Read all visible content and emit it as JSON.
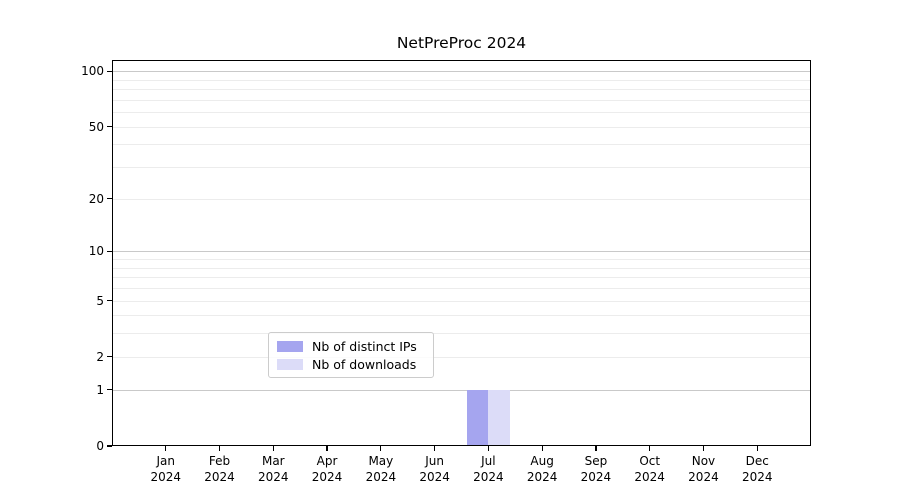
{
  "chart_data": {
    "type": "bar",
    "title": "NetPreProc 2024",
    "categories": [
      "Jan",
      "Feb",
      "Mar",
      "Apr",
      "May",
      "Jun",
      "Jul",
      "Aug",
      "Sep",
      "Oct",
      "Nov",
      "Dec"
    ],
    "category_year": "2024",
    "series": [
      {
        "name": "Nb of distinct IPs",
        "color": "#a5a5ef",
        "values": [
          0,
          0,
          0,
          0,
          0,
          0,
          1,
          0,
          0,
          0,
          0,
          0
        ]
      },
      {
        "name": "Nb of downloads",
        "color": "#dcdcf8",
        "values": [
          0,
          0,
          0,
          0,
          0,
          0,
          1,
          0,
          0,
          0,
          0,
          0
        ]
      }
    ],
    "y_axis": {
      "scale": "log10(value+1)",
      "tick_values": [
        100,
        50,
        20,
        10,
        5,
        2,
        1,
        0
      ],
      "tick_labels": [
        "100",
        "50",
        "20",
        "10",
        "5",
        "2",
        "1",
        "0"
      ],
      "major_gridlines": [
        1,
        10,
        100
      ],
      "minor_gridlines": [
        2,
        3,
        4,
        5,
        6,
        7,
        8,
        9,
        20,
        30,
        40,
        50,
        60,
        70,
        80,
        90
      ],
      "max": 115
    },
    "legend_position": "lower-center",
    "grid": true
  },
  "colors": {
    "axis": "#000000",
    "major_grid": "#c9c9c9",
    "minor_grid": "#ececec",
    "legend_border": "#cccccc",
    "text": "#000000"
  }
}
